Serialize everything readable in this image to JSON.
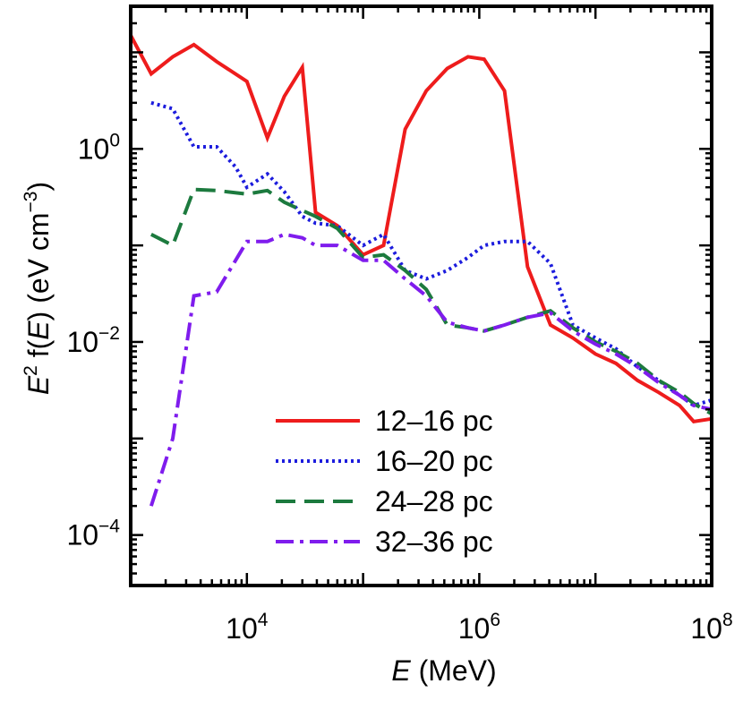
{
  "chart_data": {
    "type": "line",
    "xscale": "log",
    "yscale": "log",
    "xlim": [
      1000,
      100000000
    ],
    "ylim": [
      3e-05,
      30
    ],
    "xlabel": {
      "var": "E",
      "unit": " (MeV)"
    },
    "ylabel": {
      "pre": "E",
      "sup1": "2",
      "mid1": " f(",
      "var": "E",
      "mid2": ") (eV cm",
      "sup2": "−3",
      "post": ")"
    },
    "x_ticks": [
      {
        "value": 10000,
        "base": "10",
        "exp": "4"
      },
      {
        "value": 1000000,
        "base": "10",
        "exp": "6"
      },
      {
        "value": 100000000,
        "base": "10",
        "exp": "8"
      }
    ],
    "y_ticks": [
      {
        "value": 1,
        "base": "10",
        "exp": "0"
      },
      {
        "value": 0.01,
        "base": "10",
        "exp": "−2"
      },
      {
        "value": 0.0001,
        "base": "10",
        "exp": "−4"
      }
    ],
    "grid": false,
    "legend_position": "bottom-center",
    "series": [
      {
        "name": "12–16 pc",
        "color": "#ee1c1c",
        "dash": "solid",
        "x": [
          1000,
          1500,
          2300,
          3500,
          5500,
          10000,
          15000,
          21000,
          30000,
          39000,
          60000,
          100000,
          150000,
          230000,
          350000,
          530000,
          800000,
          1100000,
          1650000,
          2600000,
          4100000,
          6400000,
          10000000,
          15000000,
          23000000,
          35000000,
          53000000,
          70000000,
          100000000
        ],
        "y": [
          15,
          6,
          9,
          12,
          8,
          5,
          1.3,
          3.5,
          7,
          0.22,
          0.16,
          0.08,
          0.1,
          1.6,
          4,
          6.8,
          9,
          8.5,
          4,
          0.06,
          0.015,
          0.011,
          0.0075,
          0.006,
          0.004,
          0.003,
          0.0022,
          0.0015,
          0.0016
        ]
      },
      {
        "name": "16–20 pc",
        "color": "#1c1cdd",
        "dash": "dot",
        "x": [
          1500,
          2300,
          3500,
          5500,
          8000,
          10000,
          15000,
          21000,
          30000,
          39000,
          60000,
          100000,
          150000,
          230000,
          350000,
          530000,
          800000,
          1100000,
          1650000,
          2600000,
          4100000,
          6400000,
          10000000,
          15000000,
          23000000,
          35000000,
          53000000,
          70000000,
          100000000
        ],
        "y": [
          3,
          2.6,
          1.05,
          1.05,
          0.65,
          0.4,
          0.55,
          0.36,
          0.2,
          0.17,
          0.16,
          0.1,
          0.13,
          0.055,
          0.045,
          0.055,
          0.075,
          0.1,
          0.11,
          0.11,
          0.065,
          0.015,
          0.011,
          0.0085,
          0.0055,
          0.004,
          0.0028,
          0.0022,
          0.0025
        ]
      },
      {
        "name": "24–28 pc",
        "color": "#1c7a3e",
        "dash": "dash",
        "x": [
          1500,
          2300,
          3500,
          5500,
          10000,
          15000,
          21000,
          30000,
          39000,
          60000,
          100000,
          150000,
          230000,
          350000,
          530000,
          800000,
          1100000,
          1650000,
          2600000,
          4100000,
          6400000,
          10000000,
          15000000,
          23000000,
          35000000,
          53000000,
          70000000,
          100000000
        ],
        "y": [
          0.13,
          0.1,
          0.38,
          0.37,
          0.34,
          0.37,
          0.28,
          0.23,
          0.2,
          0.15,
          0.075,
          0.08,
          0.055,
          0.035,
          0.015,
          0.014,
          0.013,
          0.015,
          0.018,
          0.021,
          0.014,
          0.01,
          0.008,
          0.006,
          0.004,
          0.003,
          0.0023,
          0.0018
        ]
      },
      {
        "name": "32–36 pc",
        "color": "#7f1ced",
        "dash": "dashdot",
        "x": [
          1500,
          2300,
          3500,
          5500,
          10000,
          15000,
          21000,
          30000,
          39000,
          60000,
          100000,
          150000,
          230000,
          350000,
          530000,
          800000,
          1100000,
          1650000,
          2600000,
          4100000,
          6400000,
          10000000,
          15000000,
          23000000,
          35000000,
          53000000,
          70000000,
          100000000
        ],
        "y": [
          0.0002,
          0.001,
          0.03,
          0.033,
          0.11,
          0.11,
          0.13,
          0.12,
          0.1,
          0.1,
          0.07,
          0.07,
          0.045,
          0.03,
          0.016,
          0.014,
          0.013,
          0.015,
          0.018,
          0.02,
          0.013,
          0.0095,
          0.0075,
          0.0055,
          0.0038,
          0.0028,
          0.0022,
          0.002
        ]
      }
    ]
  }
}
